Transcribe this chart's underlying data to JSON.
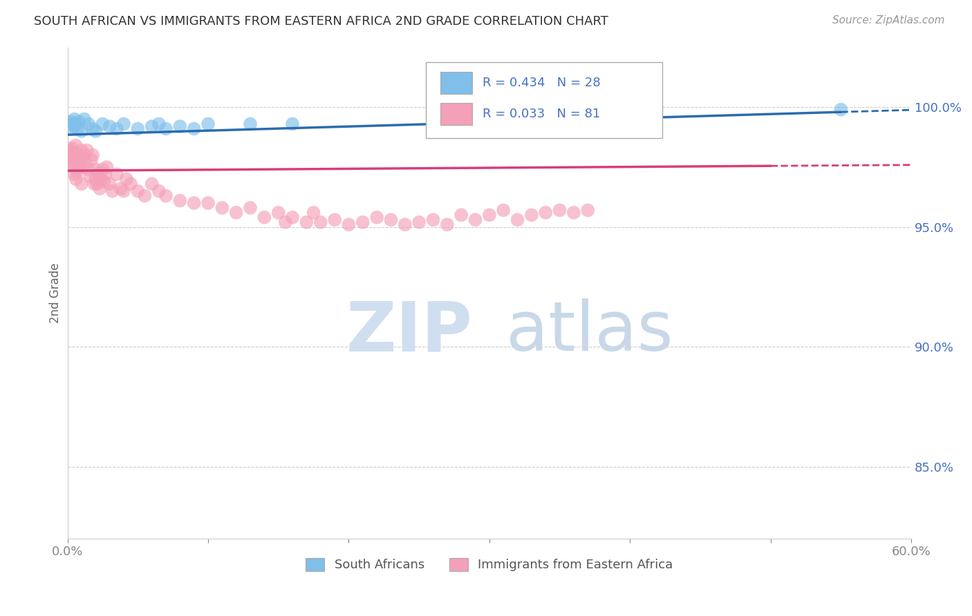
{
  "title": "SOUTH AFRICAN VS IMMIGRANTS FROM EASTERN AFRICA 2ND GRADE CORRELATION CHART",
  "source_text": "Source: ZipAtlas.com",
  "ylabel": "2nd Grade",
  "xlim": [
    0.0,
    0.6
  ],
  "ylim": [
    0.82,
    1.025
  ],
  "xtick_vals": [
    0.0,
    0.1,
    0.2,
    0.3,
    0.4,
    0.5,
    0.6
  ],
  "xticklabels": [
    "0.0%",
    "",
    "",
    "",
    "",
    "",
    "60.0%"
  ],
  "yticks_right": [
    0.85,
    0.9,
    0.95,
    1.0
  ],
  "ytick_right_labels": [
    "85.0%",
    "90.0%",
    "95.0%",
    "100.0%"
  ],
  "blue_color": "#7fbfea",
  "pink_color": "#f4a0b8",
  "blue_line_color": "#2b6cb0",
  "pink_line_color": "#d63f7a",
  "blue_R": 0.434,
  "blue_N": 28,
  "pink_R": 0.033,
  "pink_N": 81,
  "legend_label_blue": "South Africans",
  "legend_label_pink": "Immigrants from Eastern Africa",
  "watermark_zip": "ZIP",
  "watermark_atlas": "atlas",
  "grid_color": "#cccccc",
  "title_color": "#333333",
  "right_axis_color": "#4472c4",
  "blue_scatter_x": [
    0.002,
    0.003,
    0.004,
    0.005,
    0.005,
    0.006,
    0.007,
    0.008,
    0.01,
    0.012,
    0.015,
    0.018,
    0.02,
    0.025,
    0.03,
    0.035,
    0.04,
    0.05,
    0.06,
    0.065,
    0.07,
    0.08,
    0.09,
    0.1,
    0.13,
    0.16,
    0.28,
    0.55
  ],
  "blue_scatter_y": [
    0.994,
    0.991,
    0.993,
    0.995,
    0.992,
    0.993,
    0.991,
    0.994,
    0.99,
    0.995,
    0.993,
    0.991,
    0.99,
    0.993,
    0.992,
    0.991,
    0.993,
    0.991,
    0.992,
    0.993,
    0.991,
    0.992,
    0.991,
    0.993,
    0.993,
    0.993,
    0.994,
    0.999
  ],
  "pink_scatter_x": [
    0.001,
    0.002,
    0.002,
    0.003,
    0.003,
    0.004,
    0.004,
    0.005,
    0.005,
    0.006,
    0.006,
    0.007,
    0.007,
    0.008,
    0.008,
    0.009,
    0.01,
    0.01,
    0.011,
    0.012,
    0.013,
    0.014,
    0.015,
    0.016,
    0.017,
    0.018,
    0.019,
    0.02,
    0.02,
    0.021,
    0.022,
    0.023,
    0.024,
    0.025,
    0.026,
    0.027,
    0.028,
    0.03,
    0.032,
    0.035,
    0.038,
    0.04,
    0.042,
    0.045,
    0.05,
    0.055,
    0.06,
    0.065,
    0.07,
    0.08,
    0.09,
    0.1,
    0.11,
    0.12,
    0.13,
    0.14,
    0.15,
    0.155,
    0.16,
    0.17,
    0.175,
    0.18,
    0.19,
    0.2,
    0.21,
    0.22,
    0.23,
    0.24,
    0.25,
    0.26,
    0.27,
    0.28,
    0.29,
    0.3,
    0.31,
    0.32,
    0.33,
    0.34,
    0.35,
    0.36,
    0.37
  ],
  "pink_scatter_y": [
    0.982,
    0.979,
    0.976,
    0.983,
    0.978,
    0.981,
    0.975,
    0.977,
    0.972,
    0.984,
    0.97,
    0.977,
    0.973,
    0.98,
    0.975,
    0.978,
    0.982,
    0.968,
    0.975,
    0.98,
    0.977,
    0.982,
    0.974,
    0.971,
    0.978,
    0.98,
    0.968,
    0.974,
    0.97,
    0.968,
    0.972,
    0.966,
    0.97,
    0.974,
    0.969,
    0.972,
    0.975,
    0.968,
    0.965,
    0.972,
    0.966,
    0.965,
    0.97,
    0.968,
    0.965,
    0.963,
    0.968,
    0.965,
    0.963,
    0.961,
    0.96,
    0.96,
    0.958,
    0.956,
    0.958,
    0.954,
    0.956,
    0.952,
    0.954,
    0.952,
    0.956,
    0.952,
    0.953,
    0.951,
    0.952,
    0.954,
    0.953,
    0.951,
    0.952,
    0.953,
    0.951,
    0.955,
    0.953,
    0.955,
    0.957,
    0.953,
    0.955,
    0.956,
    0.957,
    0.956,
    0.957
  ]
}
